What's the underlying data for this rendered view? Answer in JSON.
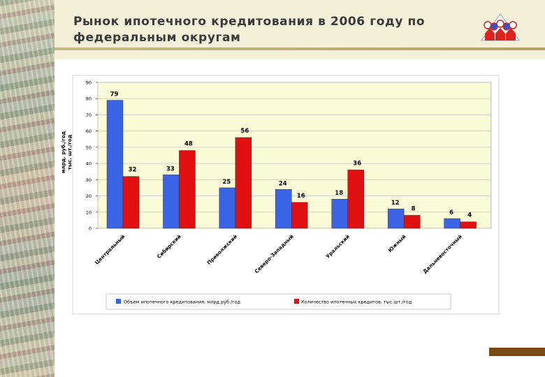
{
  "page": {
    "title": "Рынок ипотечного кредитования в 2006 году по федеральным округам"
  },
  "colors": {
    "series1": "#3b63e6",
    "series2": "#e01010",
    "plot_background": "#fbfbd8",
    "title_bar": "#f4efd8"
  },
  "logo": {
    "icon": "emblem-icon"
  },
  "chart_data": {
    "type": "bar",
    "ylabel": "млрд. руб./год\nтыс. шт./год",
    "ylim": [
      0,
      90
    ],
    "yticks": [
      0,
      10,
      20,
      30,
      40,
      50,
      60,
      70,
      80,
      90
    ],
    "grid": true,
    "legend_position": "bottom",
    "categories": [
      "Центральный",
      "Сибирский",
      "Приволжский",
      "Северо-Западный",
      "Уральский",
      "Южный",
      "Дальневосточный"
    ],
    "series": [
      {
        "name": "Объем ипотечного кредитования, млрд.руб./год",
        "values": [
          79,
          33,
          25,
          24,
          18,
          12,
          6
        ]
      },
      {
        "name": "Количество ипотечных кредитов, тыс.шт./год",
        "values": [
          32,
          48,
          56,
          16,
          36,
          8,
          4
        ]
      }
    ]
  }
}
